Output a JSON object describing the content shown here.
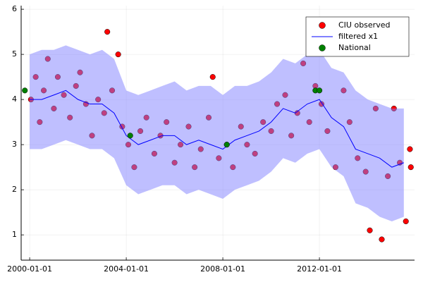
{
  "chart_data": {
    "type": "line",
    "xlim": [
      "1999-08-25",
      "2015-12-10"
    ],
    "xticks": [
      "2000-01-01",
      "2004-01-01",
      "2008-01-01",
      "2012-01-01"
    ],
    "ylim": [
      0.44,
      6.08
    ],
    "yticks": [
      1,
      2,
      3,
      4,
      5,
      6
    ],
    "grid": true,
    "legend": "top-right",
    "series": [
      {
        "name": "CIU observed",
        "color": "#ff0000",
        "mode": "markers",
        "x": [
          "2000-01-20",
          "2000-04-01",
          "2000-06-01",
          "2000-08-01",
          "2000-10-01",
          "2001-01-01",
          "2001-03-01",
          "2001-06-01",
          "2001-09-01",
          "2001-12-01",
          "2002-02-01",
          "2002-05-01",
          "2002-08-01",
          "2002-11-01",
          "2003-02-01",
          "2003-03-20",
          "2003-06-01",
          "2003-09-01",
          "2003-11-01",
          "2004-02-01",
          "2004-05-01",
          "2004-08-01",
          "2004-11-01",
          "2005-03-01",
          "2005-06-01",
          "2005-09-01",
          "2006-01-01",
          "2006-04-01",
          "2006-08-01",
          "2006-11-01",
          "2007-02-01",
          "2007-06-01",
          "2007-08-01",
          "2007-11-01",
          "2008-03-01",
          "2008-06-01",
          "2008-10-01",
          "2009-01-01",
          "2009-05-01",
          "2009-09-01",
          "2010-01-01",
          "2010-04-01",
          "2010-08-01",
          "2010-11-01",
          "2011-02-01",
          "2011-05-01",
          "2011-08-01",
          "2011-11-01",
          "2012-02-01",
          "2012-05-01",
          "2012-09-01",
          "2013-01-01",
          "2013-04-01",
          "2013-08-01",
          "2013-12-01",
          "2014-02-01",
          "2014-05-01",
          "2014-08-01",
          "2014-11-01",
          "2015-02-01",
          "2015-05-01",
          "2015-08-01",
          "2015-10-01",
          "2015-10-15"
        ],
        "values": [
          4.0,
          4.5,
          3.5,
          4.2,
          4.9,
          3.8,
          4.5,
          4.1,
          3.6,
          4.3,
          4.6,
          3.9,
          3.2,
          4.0,
          3.7,
          5.5,
          4.2,
          5.0,
          3.4,
          3.0,
          2.5,
          3.3,
          3.6,
          2.8,
          3.2,
          3.5,
          2.6,
          3.0,
          3.4,
          2.5,
          2.9,
          3.6,
          4.5,
          2.7,
          3.0,
          2.5,
          3.4,
          3.0,
          2.8,
          3.5,
          3.3,
          3.9,
          4.1,
          3.2,
          3.7,
          4.8,
          3.5,
          4.3,
          3.9,
          3.3,
          2.5,
          4.2,
          3.5,
          2.7,
          2.4,
          1.1,
          3.8,
          0.9,
          2.3,
          3.8,
          2.6,
          1.3,
          2.9,
          2.5
        ]
      },
      {
        "name": "filtered x1",
        "color": "#0000ff",
        "mode": "line",
        "x": [
          "2000-01-01",
          "2000-07-01",
          "2001-01-01",
          "2001-07-01",
          "2002-01-01",
          "2002-07-01",
          "2003-01-01",
          "2003-07-01",
          "2004-01-01",
          "2004-07-01",
          "2005-01-01",
          "2005-07-01",
          "2006-01-01",
          "2006-07-01",
          "2007-01-01",
          "2007-07-01",
          "2008-01-01",
          "2008-07-01",
          "2009-01-01",
          "2009-07-01",
          "2010-01-01",
          "2010-07-01",
          "2011-01-01",
          "2011-07-01",
          "2012-01-01",
          "2012-07-01",
          "2013-01-01",
          "2013-07-01",
          "2014-01-01",
          "2014-07-01",
          "2015-01-01",
          "2015-07-01"
        ],
        "values": [
          4.0,
          4.0,
          4.1,
          4.2,
          4.0,
          3.9,
          3.9,
          3.7,
          3.2,
          3.0,
          3.1,
          3.2,
          3.2,
          3.0,
          3.1,
          3.0,
          2.9,
          3.1,
          3.2,
          3.3,
          3.5,
          3.8,
          3.7,
          3.9,
          4.0,
          3.6,
          3.4,
          2.9,
          2.8,
          2.7,
          2.5,
          2.6
        ],
        "band_color": "#8080ff",
        "upper": [
          5.0,
          5.1,
          5.1,
          5.2,
          5.1,
          5.0,
          5.1,
          4.9,
          4.2,
          4.1,
          4.2,
          4.3,
          4.4,
          4.2,
          4.3,
          4.3,
          4.1,
          4.3,
          4.3,
          4.4,
          4.6,
          4.9,
          4.8,
          5.0,
          5.1,
          4.7,
          4.6,
          4.2,
          4.0,
          3.9,
          3.8,
          3.8
        ],
        "lower": [
          2.9,
          2.9,
          3.0,
          3.1,
          3.0,
          2.9,
          2.9,
          2.7,
          2.1,
          1.9,
          2.0,
          2.1,
          2.1,
          1.9,
          2.0,
          1.9,
          1.8,
          2.0,
          2.1,
          2.2,
          2.4,
          2.7,
          2.6,
          2.8,
          2.9,
          2.5,
          2.3,
          1.7,
          1.6,
          1.4,
          1.3,
          1.4
        ]
      },
      {
        "name": "National",
        "color": "#008000",
        "mode": "markers",
        "x": [
          "1999-10-20",
          "2004-03-01",
          "2008-03-01",
          "2011-11-01",
          "2012-01-01"
        ],
        "values": [
          4.2,
          3.2,
          3.0,
          4.2,
          4.2
        ]
      }
    ]
  }
}
